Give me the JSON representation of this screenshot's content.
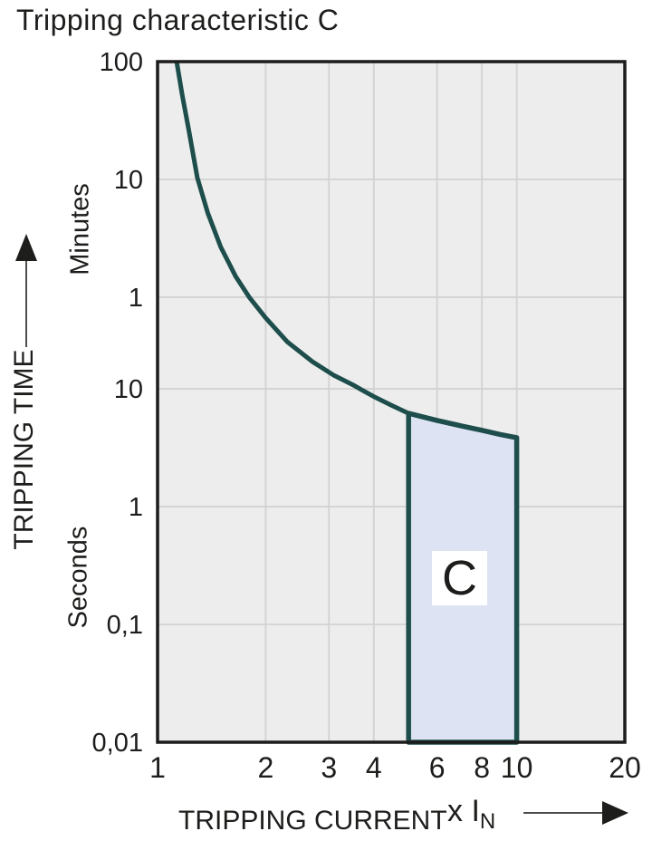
{
  "title": "Tripping characteristic C",
  "colors": {
    "curve": "#1d4e4c",
    "region_fill": "#dde3f3",
    "region_stroke": "#1d4e4c",
    "plot_bg": "#ededed",
    "grid": "#d2d2d2",
    "frame": "#1c1c1c",
    "text": "#1d1d1b",
    "arrow_line": "#4d4d4d",
    "region_label_bg": "#ffffff"
  },
  "chart_data": {
    "type": "line",
    "title": "Tripping characteristic C",
    "grid": true,
    "x_axis": {
      "label": "TRIPPING CURRENT",
      "unit_prefix": "x I",
      "unit_sub": "N",
      "scale": "log",
      "range": [
        1,
        20
      ],
      "ticks": [
        {
          "v": 1,
          "label": "1"
        },
        {
          "v": 2,
          "label": "2"
        },
        {
          "v": 3,
          "label": "3"
        },
        {
          "v": 4,
          "label": "4"
        },
        {
          "v": 6,
          "label": "6"
        },
        {
          "v": 8,
          "label": "8"
        },
        {
          "v": 10,
          "label": "10"
        },
        {
          "v": 20,
          "label": "20"
        }
      ],
      "gridlines": [
        2,
        3,
        4,
        6,
        8,
        10
      ]
    },
    "y_axis": {
      "label": "TRIPPING TIME",
      "scale": "log",
      "range_seconds": [
        0.01,
        6000
      ],
      "unit_group_upper": "Minutes",
      "unit_group_lower": "Seconds",
      "ticks": [
        {
          "t": 6000,
          "label": "100",
          "unit": "minutes"
        },
        {
          "t": 600,
          "label": "10",
          "unit": "minutes"
        },
        {
          "t": 60,
          "label": "1",
          "unit": "minutes"
        },
        {
          "t": 10,
          "label": "10",
          "unit": "seconds"
        },
        {
          "t": 1,
          "label": "1",
          "unit": "seconds"
        },
        {
          "t": 0.1,
          "label": "0,1",
          "unit": "seconds"
        },
        {
          "t": 0.01,
          "label": "0,01",
          "unit": "seconds"
        }
      ],
      "gridlines": [
        600,
        60,
        10,
        1,
        0.1
      ]
    },
    "series": [
      {
        "name": "C tripping curve",
        "points": [
          [
            1.13,
            6000
          ],
          [
            1.17,
            3200
          ],
          [
            1.22,
            1600
          ],
          [
            1.29,
            620
          ],
          [
            1.38,
            310
          ],
          [
            1.5,
            160
          ],
          [
            1.65,
            90
          ],
          [
            1.8,
            60
          ],
          [
            2.0,
            40
          ],
          [
            2.3,
            25
          ],
          [
            2.7,
            17
          ],
          [
            3.1,
            13
          ],
          [
            3.5,
            10.8
          ],
          [
            3.7,
            9.8
          ],
          [
            4.0,
            8.6
          ],
          [
            4.5,
            7.2
          ],
          [
            5.0,
            6.2
          ],
          [
            6.0,
            5.4
          ],
          [
            7.0,
            4.85
          ],
          [
            8.0,
            4.45
          ],
          [
            9.0,
            4.1
          ],
          [
            10.0,
            3.85
          ]
        ]
      }
    ],
    "region": {
      "label": "C",
      "x_range": [
        5,
        10
      ],
      "t_bottom": 0.01,
      "top_points": [
        [
          5,
          6.2
        ],
        [
          6,
          5.4
        ],
        [
          7,
          4.85
        ],
        [
          8,
          4.45
        ],
        [
          9,
          4.1
        ],
        [
          10,
          3.85
        ]
      ]
    }
  }
}
